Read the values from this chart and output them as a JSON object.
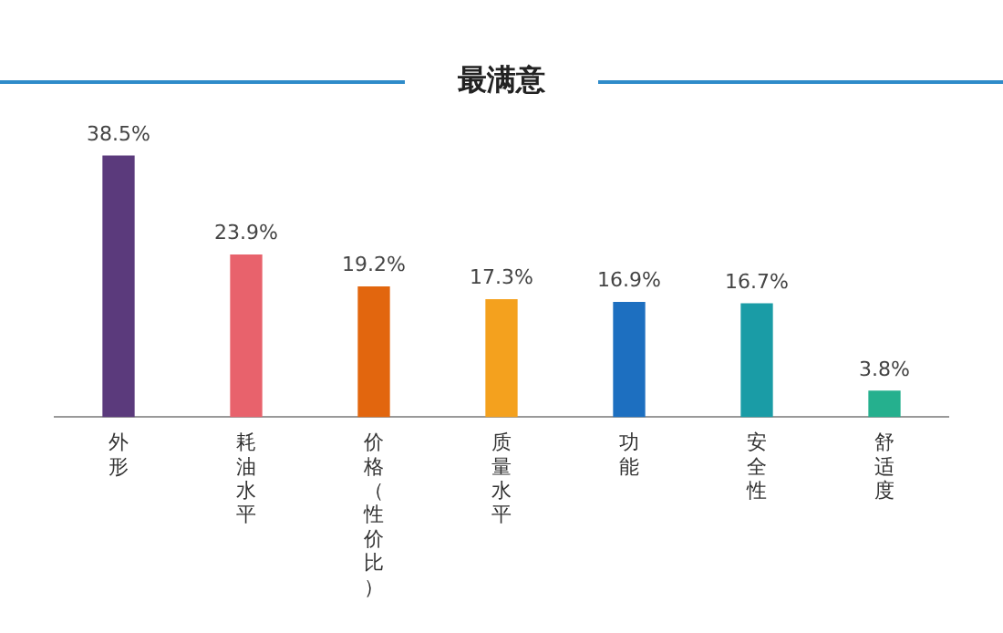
{
  "chart_data": {
    "type": "bar",
    "title": "最满意",
    "categories": [
      "外形",
      "耗油水平",
      "价格（性价比）",
      "质量水平",
      "功能",
      "安全性",
      "舒适度"
    ],
    "values": [
      38.5,
      23.9,
      19.2,
      17.3,
      16.9,
      16.7,
      3.8
    ],
    "colors": [
      "#5b3a7c",
      "#e8626c",
      "#e2660e",
      "#f4a11e",
      "#1d6fc0",
      "#1a9ca6",
      "#25b08e"
    ],
    "value_labels": [
      "38.5%",
      "23.9%",
      "19.2%",
      "17.3%",
      "16.9%",
      "16.7%",
      "3.8%"
    ],
    "tick_labels": "x",
    "grid": false,
    "legend": false
  }
}
